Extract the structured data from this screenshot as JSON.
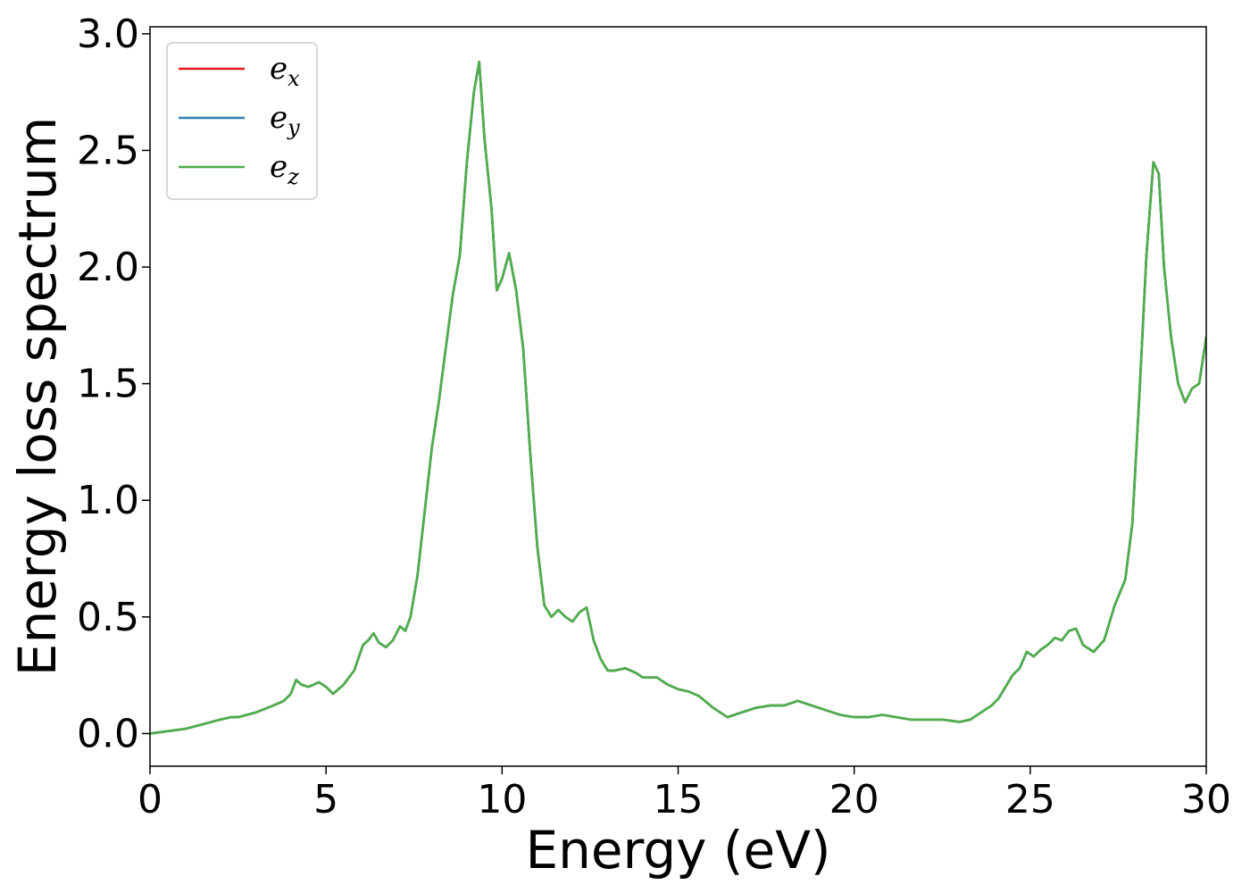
{
  "chart_data": {
    "type": "line",
    "title": "",
    "xlabel": "Energy (eV)",
    "ylabel": "Energy loss spectrum",
    "xlim": [
      0,
      30
    ],
    "ylim": [
      -0.14,
      3.03
    ],
    "xticks": [
      0,
      5,
      10,
      15,
      20,
      25,
      30
    ],
    "xtick_labels": [
      "0",
      "5",
      "10",
      "15",
      "20",
      "25",
      "30"
    ],
    "yticks": [
      0.0,
      0.5,
      1.0,
      1.5,
      2.0,
      2.5,
      3.0
    ],
    "ytick_labels": [
      "0.0",
      "0.5",
      "1.0",
      "1.5",
      "2.0",
      "2.5",
      "3.0"
    ],
    "grid": false,
    "legend": {
      "placement": "top-left"
    },
    "x": [
      0,
      0.5,
      1,
      1.5,
      2,
      2.3,
      2.5,
      3,
      3.5,
      3.8,
      4,
      4.15,
      4.3,
      4.5,
      4.8,
      5,
      5.2,
      5.5,
      5.8,
      6.05,
      6.2,
      6.35,
      6.5,
      6.7,
      6.9,
      7.1,
      7.25,
      7.4,
      7.6,
      7.8,
      8,
      8.2,
      8.4,
      8.6,
      8.8,
      9,
      9.2,
      9.35,
      9.5,
      9.7,
      9.85,
      10,
      10.2,
      10.4,
      10.6,
      10.8,
      11,
      11.2,
      11.4,
      11.6,
      11.8,
      12,
      12.2,
      12.4,
      12.6,
      12.8,
      13,
      13.2,
      13.5,
      13.8,
      14,
      14.4,
      14.7,
      15,
      15.3,
      15.6,
      16,
      16.4,
      16.8,
      17.2,
      17.6,
      18,
      18.4,
      18.8,
      19.2,
      19.6,
      20,
      20.4,
      20.8,
      21.2,
      21.6,
      22,
      22.5,
      23,
      23.3,
      23.6,
      23.9,
      24.1,
      24.3,
      24.5,
      24.7,
      24.9,
      25.1,
      25.3,
      25.5,
      25.7,
      25.9,
      26.1,
      26.3,
      26.5,
      26.8,
      27.1,
      27.4,
      27.7,
      27.9,
      28.1,
      28.3,
      28.5,
      28.65,
      28.8,
      29,
      29.2,
      29.4,
      29.6,
      29.8,
      30
    ],
    "series": [
      {
        "name": "e_x",
        "color": "#e41a1c",
        "values": [
          0.0,
          0.01,
          0.02,
          0.04,
          0.06,
          0.07,
          0.07,
          0.09,
          0.12,
          0.14,
          0.17,
          0.23,
          0.21,
          0.2,
          0.22,
          0.2,
          0.17,
          0.21,
          0.27,
          0.38,
          0.4,
          0.43,
          0.39,
          0.37,
          0.4,
          0.46,
          0.44,
          0.5,
          0.68,
          0.95,
          1.22,
          1.42,
          1.65,
          1.88,
          2.05,
          2.45,
          2.75,
          2.88,
          2.55,
          2.25,
          1.9,
          1.95,
          2.06,
          1.9,
          1.65,
          1.2,
          0.8,
          0.55,
          0.5,
          0.53,
          0.5,
          0.48,
          0.52,
          0.54,
          0.4,
          0.32,
          0.27,
          0.27,
          0.28,
          0.26,
          0.24,
          0.24,
          0.21,
          0.19,
          0.18,
          0.16,
          0.11,
          0.07,
          0.09,
          0.11,
          0.12,
          0.12,
          0.14,
          0.12,
          0.1,
          0.08,
          0.07,
          0.07,
          0.08,
          0.07,
          0.06,
          0.06,
          0.06,
          0.05,
          0.06,
          0.09,
          0.12,
          0.15,
          0.2,
          0.25,
          0.28,
          0.35,
          0.33,
          0.36,
          0.38,
          0.41,
          0.4,
          0.44,
          0.45,
          0.38,
          0.35,
          0.4,
          0.55,
          0.66,
          0.9,
          1.45,
          2.05,
          2.45,
          2.4,
          2.0,
          1.7,
          1.5,
          1.42,
          1.48,
          1.5,
          1.7
        ]
      },
      {
        "name": "e_y",
        "color": "#377eb8",
        "values": [
          0.0,
          0.01,
          0.02,
          0.04,
          0.06,
          0.07,
          0.07,
          0.09,
          0.12,
          0.14,
          0.17,
          0.23,
          0.21,
          0.2,
          0.22,
          0.2,
          0.17,
          0.21,
          0.27,
          0.38,
          0.4,
          0.43,
          0.39,
          0.37,
          0.4,
          0.46,
          0.44,
          0.5,
          0.68,
          0.95,
          1.22,
          1.42,
          1.65,
          1.88,
          2.05,
          2.45,
          2.75,
          2.88,
          2.55,
          2.25,
          1.9,
          1.95,
          2.06,
          1.9,
          1.65,
          1.2,
          0.8,
          0.55,
          0.5,
          0.53,
          0.5,
          0.48,
          0.52,
          0.54,
          0.4,
          0.32,
          0.27,
          0.27,
          0.28,
          0.26,
          0.24,
          0.24,
          0.21,
          0.19,
          0.18,
          0.16,
          0.11,
          0.07,
          0.09,
          0.11,
          0.12,
          0.12,
          0.14,
          0.12,
          0.1,
          0.08,
          0.07,
          0.07,
          0.08,
          0.07,
          0.06,
          0.06,
          0.06,
          0.05,
          0.06,
          0.09,
          0.12,
          0.15,
          0.2,
          0.25,
          0.28,
          0.35,
          0.33,
          0.36,
          0.38,
          0.41,
          0.4,
          0.44,
          0.45,
          0.38,
          0.35,
          0.4,
          0.55,
          0.66,
          0.9,
          1.45,
          2.05,
          2.45,
          2.4,
          2.0,
          1.7,
          1.5,
          1.42,
          1.48,
          1.5,
          1.7
        ]
      },
      {
        "name": "e_z",
        "color": "#4daf4a",
        "values": [
          0.0,
          0.01,
          0.02,
          0.04,
          0.06,
          0.07,
          0.07,
          0.09,
          0.12,
          0.14,
          0.17,
          0.23,
          0.21,
          0.2,
          0.22,
          0.2,
          0.17,
          0.21,
          0.27,
          0.38,
          0.4,
          0.43,
          0.39,
          0.37,
          0.4,
          0.46,
          0.44,
          0.5,
          0.68,
          0.95,
          1.22,
          1.42,
          1.65,
          1.88,
          2.05,
          2.45,
          2.75,
          2.88,
          2.55,
          2.25,
          1.9,
          1.95,
          2.06,
          1.9,
          1.65,
          1.2,
          0.8,
          0.55,
          0.5,
          0.53,
          0.5,
          0.48,
          0.52,
          0.54,
          0.4,
          0.32,
          0.27,
          0.27,
          0.28,
          0.26,
          0.24,
          0.24,
          0.21,
          0.19,
          0.18,
          0.16,
          0.11,
          0.07,
          0.09,
          0.11,
          0.12,
          0.12,
          0.14,
          0.12,
          0.1,
          0.08,
          0.07,
          0.07,
          0.08,
          0.07,
          0.06,
          0.06,
          0.06,
          0.05,
          0.06,
          0.09,
          0.12,
          0.15,
          0.2,
          0.25,
          0.28,
          0.35,
          0.33,
          0.36,
          0.38,
          0.41,
          0.4,
          0.44,
          0.45,
          0.38,
          0.35,
          0.4,
          0.55,
          0.66,
          0.9,
          1.45,
          2.05,
          2.45,
          2.4,
          2.0,
          1.7,
          1.5,
          1.42,
          1.48,
          1.5,
          1.7
        ]
      }
    ],
    "legend_entries": [
      {
        "base": "e",
        "sub": "x"
      },
      {
        "base": "e",
        "sub": "y"
      },
      {
        "base": "e",
        "sub": "z"
      }
    ]
  }
}
